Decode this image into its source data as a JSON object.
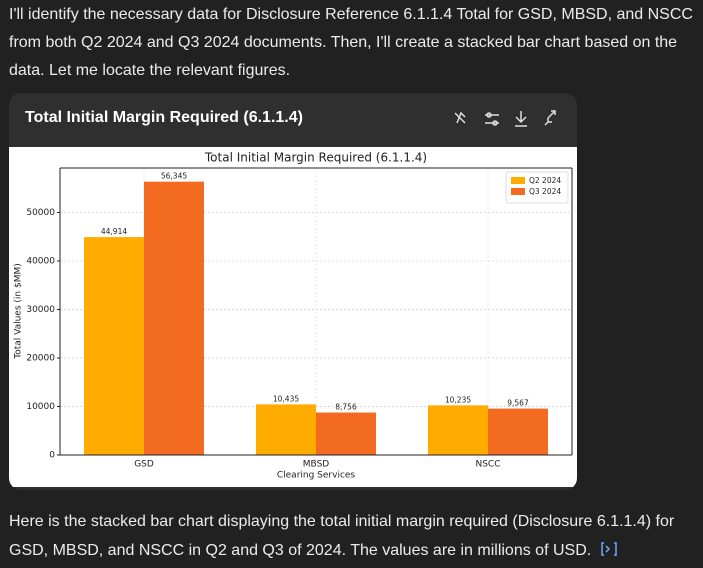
{
  "intro_lines": [
    "I'll identify the necessary data for Disclosure Reference 6.1.1.4 Total for GSD, MBSD, and NSCC",
    "from both Q2 2024 and Q3 2024 documents. Then, I'll create a stacked bar chart based on the",
    "data. Let me locate the relevant figures."
  ],
  "card": {
    "title": "Total Initial Margin Required (6.1.1.4)"
  },
  "chart_data": {
    "type": "bar",
    "title": "Total Initial Margin Required (6.1.1.4)",
    "x_label": "Clearing Services",
    "y_label": "Total Values (in $MM)",
    "categories": [
      "GSD",
      "MBSD",
      "NSCC"
    ],
    "series": [
      {
        "name": "Q2 2024",
        "color": "#ffab00",
        "values": [
          44914,
          10435,
          10235
        ],
        "value_labels": [
          "44,914",
          "10,435",
          "10,235"
        ]
      },
      {
        "name": "Q3 2024",
        "color": "#f26b21",
        "values": [
          56345,
          8756,
          9567
        ],
        "value_labels": [
          "56,345",
          "8,756",
          "9,567"
        ]
      }
    ],
    "ylim": [
      0,
      59162
    ],
    "yticks": [
      0,
      10000,
      20000,
      30000,
      40000,
      50000
    ],
    "grid": true,
    "legend": "upper right"
  },
  "outro_lines": [
    "Here is the stacked bar chart displaying the total initial margin required (Disclosure 6.1.1.4) for",
    "GSD, MBSD, and NSCC in Q2 and Q3 of 2024. The values are in millions of USD."
  ]
}
